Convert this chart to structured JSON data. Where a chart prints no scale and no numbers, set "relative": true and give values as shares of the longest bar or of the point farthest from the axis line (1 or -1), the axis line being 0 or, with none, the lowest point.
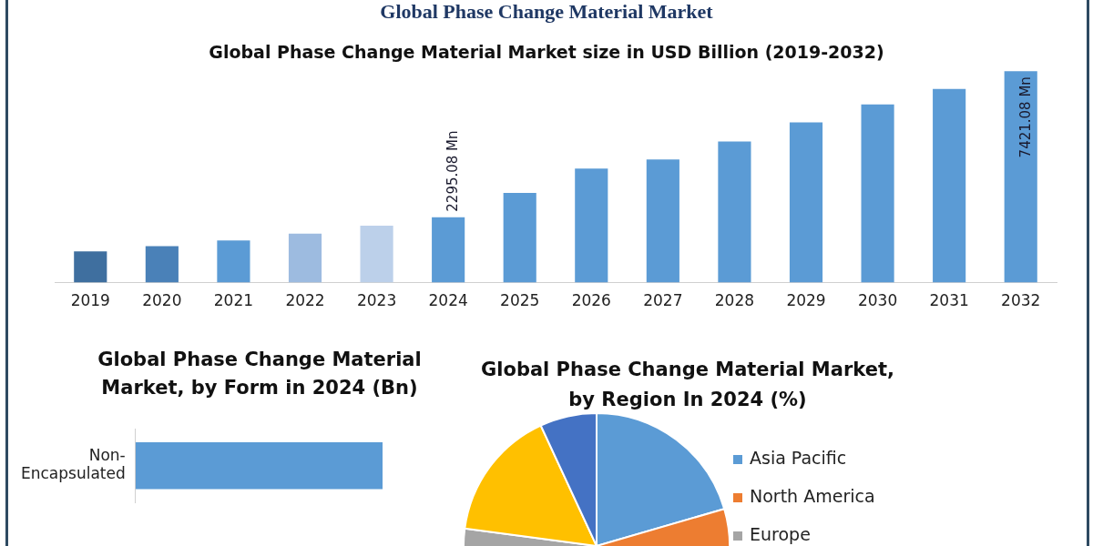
{
  "chart_data": [
    {
      "type": "bar",
      "title": "Global Phase Change Material Market",
      "subtitle": "Global Phase Change Material Market size in USD Billion (2019-2032)",
      "tick_labels": "x",
      "categories": [
        "2019",
        "2020",
        "2021",
        "2022",
        "2023",
        "2024",
        "2025",
        "2026",
        "2027",
        "2028",
        "2029",
        "2030",
        "2031",
        "2032"
      ],
      "values": [
        1098,
        1277,
        1477,
        1716,
        1996,
        2295.08,
        3149,
        4004,
        4318,
        4948,
        5622,
        6252,
        6792,
        7421.08
      ],
      "colors": [
        "#3f6f9f",
        "#4a81b8",
        "#5b9bd5",
        "#9dbbe0",
        "#bcd0ea",
        "#5b9bd5",
        "#5b9bd5",
        "#5b9bd5",
        "#5b9bd5",
        "#5b9bd5",
        "#5b9bd5",
        "#5b9bd5",
        "#5b9bd5",
        "#5b9bd5"
      ],
      "value_labels": [
        null,
        null,
        null,
        null,
        null,
        "2295.08 Mn",
        null,
        null,
        null,
        null,
        null,
        null,
        null,
        "7421.08 Mn"
      ],
      "legend": false
    },
    {
      "type": "bar",
      "orientation": "horizontal",
      "title": "Global Phase Change Material Market, by Form in 2024 (Bn)",
      "relative": true,
      "categories": [
        "Non-Encapsulated"
      ],
      "values": [
        1
      ],
      "color": "#5b9bd5",
      "legend": false
    },
    {
      "type": "pie",
      "title": "Global Phase Change Material Market, by Region In 2024 (%)",
      "categories": [
        "Asia Pacific",
        "North America",
        "Europe",
        null,
        null
      ],
      "values": [
        20.5,
        20,
        36.6,
        16,
        6.9
      ],
      "colors": [
        "#5b9bd5",
        "#ed7d31",
        "#a5a5a5",
        "#ffc000",
        "#4472c4"
      ],
      "legend": "right"
    }
  ]
}
